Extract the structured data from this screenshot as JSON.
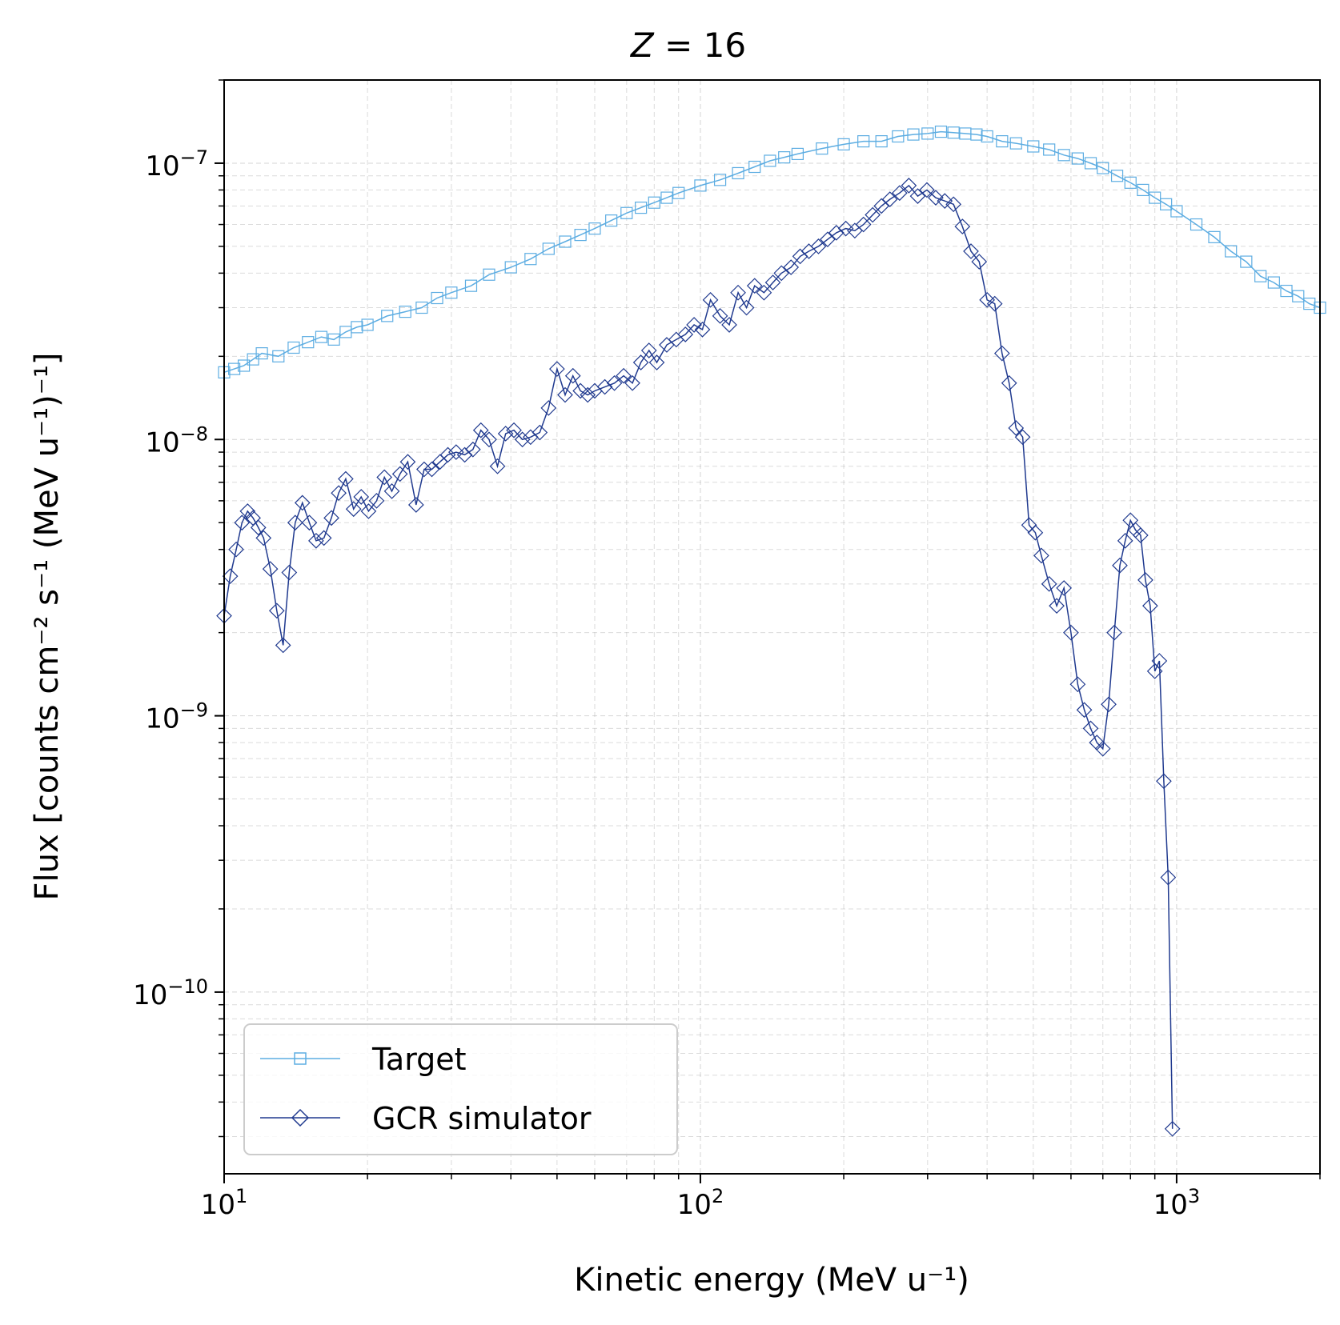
{
  "chart_data": {
    "type": "line",
    "title": "Z = 16",
    "title_parts": {
      "var": "Z",
      "eq": "=",
      "num": "16"
    },
    "xlabel": "Kinetic energy (MeV u⁻¹)",
    "ylabel": "Flux [counts cm⁻² s⁻¹ (MeV u⁻¹)⁻¹]",
    "xscale": "log",
    "yscale": "log",
    "xlim": [
      10,
      2000
    ],
    "ylim": [
      2.2e-11,
      2e-07
    ],
    "grid": true,
    "legend_position": "lower-left",
    "x_tick_labels": [
      {
        "value": 10,
        "base": "10",
        "exp": "1"
      },
      {
        "value": 100,
        "base": "10",
        "exp": "2"
      },
      {
        "value": 1000,
        "base": "10",
        "exp": "3"
      }
    ],
    "y_tick_labels": [
      {
        "value": 1e-07,
        "base": "10",
        "exp": "−7"
      },
      {
        "value": 1e-08,
        "base": "10",
        "exp": "−8"
      },
      {
        "value": 1e-09,
        "base": "10",
        "exp": "−9"
      },
      {
        "value": 1e-10,
        "base": "10",
        "exp": "−10"
      }
    ],
    "series": [
      {
        "name": "Target",
        "color": "#5dade2",
        "marker": "square",
        "x": [
          10,
          10.5,
          11,
          11.5,
          12,
          13,
          14,
          15,
          16,
          17,
          18,
          19,
          20,
          22,
          24,
          26,
          28,
          30,
          33,
          36,
          40,
          44,
          48,
          52,
          56,
          60,
          65,
          70,
          75,
          80,
          85,
          90,
          100,
          110,
          120,
          130,
          140,
          150,
          160,
          180,
          200,
          220,
          240,
          260,
          280,
          300,
          320,
          340,
          360,
          380,
          400,
          430,
          460,
          500,
          540,
          580,
          620,
          660,
          700,
          750,
          800,
          850,
          900,
          950,
          1000,
          1100,
          1200,
          1300,
          1400,
          1500,
          1600,
          1700,
          1800,
          1900,
          2000
        ],
        "y": [
          1.75e-08,
          1.8e-08,
          1.85e-08,
          1.95e-08,
          2.05e-08,
          2e-08,
          2.15e-08,
          2.25e-08,
          2.35e-08,
          2.3e-08,
          2.45e-08,
          2.55e-08,
          2.6e-08,
          2.8e-08,
          2.9e-08,
          3e-08,
          3.25e-08,
          3.4e-08,
          3.6e-08,
          3.95e-08,
          4.2e-08,
          4.5e-08,
          4.9e-08,
          5.2e-08,
          5.5e-08,
          5.8e-08,
          6.2e-08,
          6.6e-08,
          6.9e-08,
          7.2e-08,
          7.5e-08,
          7.8e-08,
          8.3e-08,
          8.7e-08,
          9.2e-08,
          9.7e-08,
          1.02e-07,
          1.05e-07,
          1.08e-07,
          1.13e-07,
          1.17e-07,
          1.2e-07,
          1.2e-07,
          1.25e-07,
          1.27e-07,
          1.28e-07,
          1.3e-07,
          1.29e-07,
          1.28e-07,
          1.27e-07,
          1.25e-07,
          1.2e-07,
          1.18e-07,
          1.15e-07,
          1.12e-07,
          1.07e-07,
          1.04e-07,
          1e-07,
          9.6e-08,
          9e-08,
          8.5e-08,
          8e-08,
          7.5e-08,
          7.1e-08,
          6.7e-08,
          6e-08,
          5.4e-08,
          4.8e-08,
          4.4e-08,
          3.9e-08,
          3.7e-08,
          3.45e-08,
          3.3e-08,
          3.1e-08,
          3e-08
        ]
      },
      {
        "name": "GCR simulator",
        "color": "#203a8f",
        "marker": "diamond",
        "x": [
          10,
          10.3,
          10.6,
          10.9,
          11.2,
          11.5,
          11.8,
          12.1,
          12.5,
          12.9,
          13.3,
          13.7,
          14.1,
          14.6,
          15.1,
          15.6,
          16.2,
          16.8,
          17.4,
          18,
          18.7,
          19.4,
          20.1,
          20.9,
          21.7,
          22.5,
          23.4,
          24.3,
          25.3,
          26.3,
          27.3,
          28.4,
          29.5,
          30.7,
          32,
          33.3,
          34.6,
          36,
          37.5,
          39,
          40.6,
          42.3,
          44,
          46,
          48,
          50,
          52,
          54,
          56,
          58,
          60,
          63,
          66,
          69,
          72,
          75,
          78,
          81,
          85,
          89,
          93,
          97,
          101,
          105,
          110,
          115,
          120,
          125,
          130,
          136,
          142,
          148,
          155,
          162,
          169,
          177,
          185,
          193,
          202,
          211,
          220,
          230,
          240,
          250,
          262,
          274,
          286,
          299,
          312,
          326,
          340,
          355,
          370,
          385,
          400,
          415,
          430,
          445,
          460,
          475,
          490,
          505,
          520,
          540,
          560,
          580,
          600,
          620,
          640,
          660,
          680,
          700,
          720,
          740,
          760,
          780,
          800,
          820,
          840,
          860,
          880,
          900,
          920,
          940,
          960,
          980
        ],
        "y": [
          2.3e-09,
          3.2e-09,
          4e-09,
          5e-09,
          5.5e-09,
          5.2e-09,
          4.8e-09,
          4.4e-09,
          3.4e-09,
          2.4e-09,
          1.8e-09,
          3.3e-09,
          5e-09,
          5.9e-09,
          5e-09,
          4.3e-09,
          4.4e-09,
          5.2e-09,
          6.4e-09,
          7.2e-09,
          5.6e-09,
          6.2e-09,
          5.5e-09,
          6e-09,
          7.3e-09,
          6.5e-09,
          7.5e-09,
          8.3e-09,
          5.8e-09,
          7.8e-09,
          7.8e-09,
          8.3e-09,
          8.8e-09,
          9e-09,
          8.8e-09,
          9.2e-09,
          1.08e-08,
          1e-08,
          8e-09,
          1.05e-08,
          1.08e-08,
          1e-08,
          1.02e-08,
          1.06e-08,
          1.3e-08,
          1.8e-08,
          1.45e-08,
          1.7e-08,
          1.5e-08,
          1.45e-08,
          1.5e-08,
          1.55e-08,
          1.6e-08,
          1.7e-08,
          1.6e-08,
          1.9e-08,
          2.1e-08,
          1.9e-08,
          2.2e-08,
          2.3e-08,
          2.4e-08,
          2.6e-08,
          2.5e-08,
          3.2e-08,
          2.8e-08,
          2.6e-08,
          3.4e-08,
          3e-08,
          3.6e-08,
          3.4e-08,
          3.7e-08,
          4e-08,
          4.2e-08,
          4.6e-08,
          4.8e-08,
          5e-08,
          5.3e-08,
          5.6e-08,
          5.8e-08,
          5.7e-08,
          6e-08,
          6.5e-08,
          7e-08,
          7.4e-08,
          7.8e-08,
          8.3e-08,
          7.6e-08,
          8e-08,
          7.5e-08,
          7.3e-08,
          7.1e-08,
          5.9e-08,
          4.8e-08,
          4.4e-08,
          3.2e-08,
          3.1e-08,
          2.05e-08,
          1.6e-08,
          1.1e-08,
          1.02e-08,
          4.9e-09,
          4.6e-09,
          3.8e-09,
          3e-09,
          2.5e-09,
          2.9e-09,
          2e-09,
          1.3e-09,
          1.05e-09,
          9e-10,
          8e-10,
          7.6e-10,
          1.1e-09,
          2e-09,
          3.5e-09,
          4.3e-09,
          5.1e-09,
          4.7e-09,
          4.5e-09,
          3.1e-09,
          2.5e-09,
          1.45e-09,
          1.58e-09,
          5.8e-10,
          2.6e-10,
          3.2e-11
        ]
      }
    ]
  }
}
